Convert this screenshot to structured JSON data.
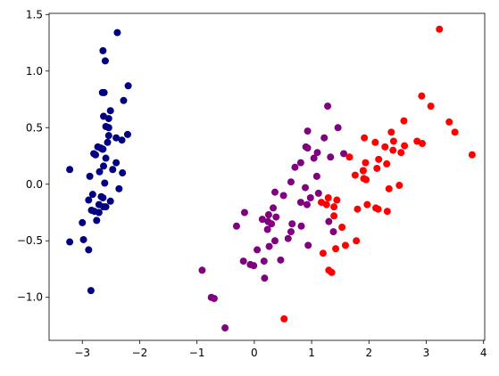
{
  "chart_data": {
    "type": "scatter",
    "xlim": [
      -3.58,
      4.02
    ],
    "ylim": [
      -1.38,
      1.51
    ],
    "xticks": [
      {
        "value": -3,
        "label": "−3"
      },
      {
        "value": -2,
        "label": "−2"
      },
      {
        "value": -1,
        "label": "−1"
      },
      0,
      1,
      2,
      3,
      4
    ],
    "yticks": [
      {
        "value": -1.0,
        "label": "−1.0"
      },
      {
        "value": -0.5,
        "label": "−0.5"
      },
      {
        "value": 0.0,
        "label": "0.0"
      },
      {
        "value": 0.5,
        "label": "0.5"
      },
      {
        "value": 1.0,
        "label": "1.0"
      },
      {
        "value": 1.5,
        "label": "1.5"
      }
    ],
    "series": [
      {
        "color": "navy",
        "x": [
          -2.68,
          -2.71,
          -2.89,
          -2.75,
          -2.73,
          -2.28,
          -2.82,
          -2.63,
          -2.89,
          -2.67,
          -2.51,
          -2.61,
          -2.79,
          -3.22,
          -2.64,
          -2.39,
          -2.62,
          -2.65,
          -2.2,
          -2.59,
          -2.31,
          -2.54,
          -3.22,
          -2.3,
          -2.36,
          -2.51,
          -2.47,
          -2.56,
          -2.64,
          -2.63,
          -2.59,
          -2.41,
          -2.65,
          -2.6,
          -2.64,
          -2.87,
          -2.63,
          -2.8,
          -2.98,
          -2.59,
          -2.77,
          -2.85,
          -3.0,
          -2.41,
          -2.21,
          -2.71,
          -2.54,
          -2.84,
          -2.54,
          -2.7
        ],
        "y": [
          0.32,
          -0.18,
          -0.14,
          -0.32,
          0.33,
          0.74,
          -0.09,
          0.16,
          -0.58,
          -0.11,
          0.65,
          0.01,
          -0.24,
          -0.51,
          1.18,
          1.34,
          0.81,
          0.31,
          0.87,
          0.51,
          0.39,
          0.43,
          0.13,
          0.1,
          -0.04,
          -0.15,
          0.13,
          0.37,
          0.31,
          -0.2,
          -0.2,
          0.41,
          0.81,
          1.09,
          -0.12,
          0.07,
          0.6,
          0.27,
          -0.49,
          0.23,
          0.26,
          -0.94,
          -0.34,
          0.19,
          0.44,
          -0.25,
          0.5,
          -0.23,
          0.58,
          0.11
        ]
      },
      {
        "color": "purple",
        "x": [
          1.28,
          0.93,
          1.46,
          0.18,
          1.09,
          0.64,
          1.1,
          -0.75,
          1.04,
          -0.01,
          -0.51,
          0.51,
          0.26,
          0.98,
          -0.17,
          0.93,
          0.66,
          0.24,
          0.94,
          0.05,
          1.12,
          0.36,
          1.3,
          0.92,
          0.71,
          0.9,
          1.33,
          1.56,
          0.81,
          -0.31,
          -0.07,
          -0.19,
          0.14,
          1.38,
          0.59,
          0.81,
          1.22,
          0.82,
          0.25,
          0.17,
          0.46,
          0.89,
          0.23,
          -0.7,
          0.36,
          0.33,
          0.38,
          0.64,
          -0.91,
          0.3
        ],
        "y": [
          0.69,
          0.32,
          0.5,
          -0.83,
          0.07,
          -0.42,
          0.28,
          -1.0,
          0.23,
          -0.72,
          -1.27,
          -0.1,
          -0.55,
          -0.12,
          -0.25,
          0.47,
          -0.35,
          -0.33,
          -0.54,
          -0.58,
          -0.08,
          -0.07,
          -0.33,
          -0.18,
          0.15,
          0.33,
          0.24,
          0.27,
          -0.16,
          -0.37,
          -0.71,
          -0.68,
          -0.31,
          -0.42,
          -0.48,
          0.19,
          0.41,
          -0.37,
          -0.27,
          -0.68,
          -0.67,
          -0.03,
          -0.4,
          -1.01,
          -0.5,
          -0.21,
          -0.29,
          0.02,
          -0.76,
          -0.35
        ]
      },
      {
        "color": "red",
        "x": [
          2.53,
          1.42,
          2.62,
          1.97,
          2.35,
          3.4,
          0.52,
          2.93,
          2.32,
          2.92,
          1.66,
          1.8,
          2.17,
          1.35,
          1.59,
          1.9,
          1.95,
          3.8,
          1.3,
          2.43,
          1.2,
          3.5,
          1.39,
          2.28,
          2.61,
          1.26,
          1.29,
          2.12,
          2.39,
          2.84,
          3.23,
          2.16,
          1.44,
          1.78,
          3.08,
          2.14,
          1.91,
          1.17,
          2.11,
          2.31,
          1.92,
          2.56,
          2.42,
          1.94,
          1.53,
          1.76,
          1.9,
          1.39
        ],
        "y": [
          -0.01,
          -0.57,
          0.34,
          -0.18,
          -0.04,
          0.55,
          -1.19,
          0.36,
          -0.24,
          0.78,
          0.24,
          -0.22,
          0.22,
          -0.78,
          -0.54,
          0.12,
          0.04,
          0.26,
          -0.76,
          0.38,
          -0.61,
          0.46,
          -0.2,
          0.33,
          0.56,
          -0.18,
          -0.12,
          -0.21,
          0.46,
          0.38,
          1.37,
          -0.22,
          -0.14,
          -0.5,
          0.69,
          0.14,
          0.05,
          -0.16,
          0.37,
          0.18,
          0.41,
          0.28,
          0.3,
          0.19,
          -0.38,
          0.08,
          0.12,
          -0.28
        ]
      }
    ]
  }
}
